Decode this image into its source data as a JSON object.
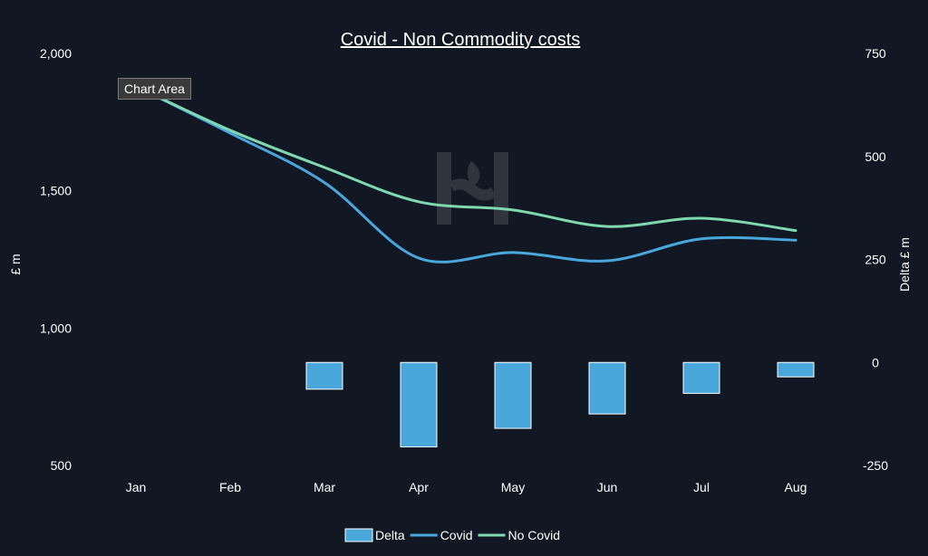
{
  "tooltip": "Chart Area",
  "chart_data": {
    "type": "combo",
    "title": "Covid - Non Commodity costs",
    "categories": [
      "Jan",
      "Feb",
      "Mar",
      "Apr",
      "May",
      "Jun",
      "Jul",
      "Aug"
    ],
    "ylabel": "£ m",
    "y2label": "Delta £ m",
    "ylim": [
      500,
      2000
    ],
    "yticks": [
      "2,000",
      "1,500",
      "1,000",
      "500"
    ],
    "ytick_values": [
      2000,
      1500,
      1000,
      500
    ],
    "y2lim": [
      -250,
      750
    ],
    "y2ticks": [
      "750",
      "500",
      "250",
      "0",
      "-250"
    ],
    "y2tick_values": [
      750,
      500,
      250,
      0,
      -250
    ],
    "grid": false,
    "legend_position": "bottom",
    "series": [
      {
        "name": "Delta",
        "kind": "bar",
        "axis": "y2",
        "color": "#4aa7dc",
        "values": [
          0,
          0,
          -65,
          -205,
          -160,
          -125,
          -75,
          -35
        ]
      },
      {
        "name": "Covid",
        "kind": "line",
        "axis": "y",
        "color": "#4aa7dc",
        "values": [
          1880,
          1710,
          1530,
          1255,
          1275,
          1245,
          1325,
          1320
        ]
      },
      {
        "name": "No Covid",
        "kind": "line",
        "axis": "y",
        "color": "#7fd8b0",
        "values": [
          1880,
          1720,
          1585,
          1460,
          1430,
          1370,
          1400,
          1355
        ]
      }
    ]
  }
}
